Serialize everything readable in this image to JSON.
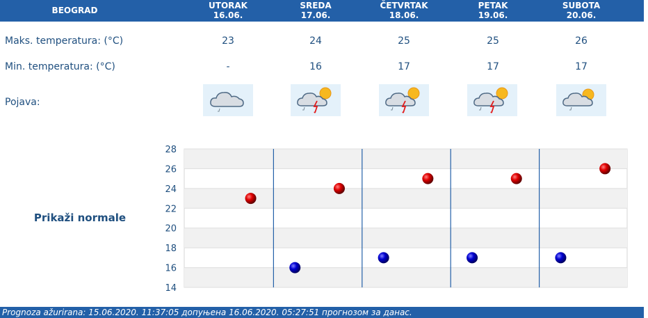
{
  "header": {
    "city": "BEOGRAD"
  },
  "days": [
    {
      "name": "UTORAK",
      "date": "16.06.",
      "max": "23",
      "min": "-",
      "icon": "cloudy-drizzle-icon"
    },
    {
      "name": "SREDA",
      "date": "17.06.",
      "max": "24",
      "min": "16",
      "icon": "thunderstorm-sun-icon"
    },
    {
      "name": "ČETVRTAK",
      "date": "18.06.",
      "max": "25",
      "min": "17",
      "icon": "thunderstorm-sun-icon"
    },
    {
      "name": "PETAK",
      "date": "19.06.",
      "max": "25",
      "min": "17",
      "icon": "thunderstorm-sun-icon"
    },
    {
      "name": "SUBOTA",
      "date": "20.06.",
      "max": "26",
      "min": "17",
      "icon": "partly-cloudy-drizzle-icon"
    }
  ],
  "labels": {
    "max": "Maks. temperatura: (°C)",
    "min": "Min. temperatura: (°C)",
    "phenomenon": "Pojava:"
  },
  "normals_link": "Prikaži normale",
  "footer": "Prognoza ažurirana:  15.06.2020. 11:37:05 допуњена 16.06.2020. 05:27:51 прогнозом за данас.",
  "colors": {
    "header_bg": "#2360a8",
    "max_point": "#e00000",
    "min_point": "#0000d0",
    "text": "#1f4f7f"
  },
  "chart_data": {
    "type": "scatter",
    "categories": [
      "16.06.",
      "17.06.",
      "18.06.",
      "19.06.",
      "20.06."
    ],
    "series": [
      {
        "values": [
          23,
          24,
          25,
          25,
          26
        ]
      },
      {
        "values": [
          null,
          16,
          17,
          17,
          17
        ]
      }
    ],
    "ylim": [
      14,
      28
    ],
    "yticks": [
      14,
      16,
      18,
      20,
      22,
      24,
      26,
      28
    ],
    "grid": true
  }
}
